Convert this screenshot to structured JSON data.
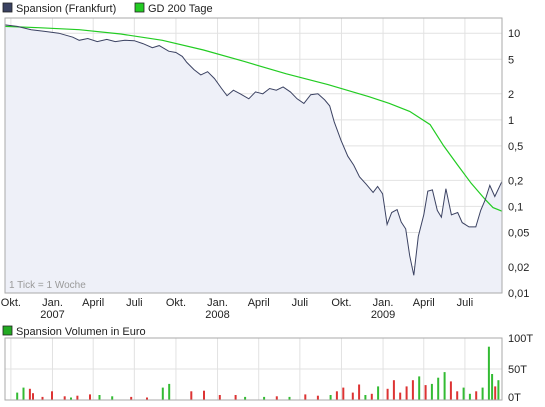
{
  "chart_data": [
    {
      "type": "line",
      "y_scale": "log",
      "ylim": [
        0.01,
        15
      ],
      "y_ticks": [
        {
          "value": 10,
          "label": "10"
        },
        {
          "value": 5,
          "label": "5"
        },
        {
          "value": 2,
          "label": "2"
        },
        {
          "value": 1,
          "label": "1"
        },
        {
          "value": 0.5,
          "label": "0,5"
        },
        {
          "value": 0.2,
          "label": "0,2"
        },
        {
          "value": 0.1,
          "label": "0,1"
        },
        {
          "value": 0.05,
          "label": "0,05"
        },
        {
          "value": 0.02,
          "label": "0,02"
        },
        {
          "value": 0.01,
          "label": "0,01"
        }
      ],
      "x_range": [
        "2006-09-18",
        "2009-09-21"
      ],
      "x_ticks": [
        {
          "date": "2006-10-01",
          "label": "Okt.",
          "year": ""
        },
        {
          "date": "2007-01-01",
          "label": "Jan.",
          "year": "2007"
        },
        {
          "date": "2007-04-01",
          "label": "April",
          "year": ""
        },
        {
          "date": "2007-07-01",
          "label": "Juli",
          "year": ""
        },
        {
          "date": "2007-10-01",
          "label": "Okt.",
          "year": ""
        },
        {
          "date": "2008-01-01",
          "label": "Jan.",
          "year": "2008"
        },
        {
          "date": "2008-04-01",
          "label": "April",
          "year": ""
        },
        {
          "date": "2008-07-01",
          "label": "Juli",
          "year": ""
        },
        {
          "date": "2008-10-01",
          "label": "Okt.",
          "year": ""
        },
        {
          "date": "2009-01-01",
          "label": "Jan.",
          "year": "2009"
        },
        {
          "date": "2009-04-01",
          "label": "April",
          "year": ""
        },
        {
          "date": "2009-07-01",
          "label": "Juli",
          "year": ""
        }
      ],
      "grid": true,
      "annotation": "1 Tick = 1 Woche",
      "legend_position": "top-left",
      "series": [
        {
          "name": "Spansion (Frankfurt)",
          "color": "#3b4262",
          "fill": "#eef0f8",
          "points": [
            [
              "2006-09-18",
              12.5
            ],
            [
              "2006-10-15",
              12.0
            ],
            [
              "2006-11-15",
              11.0
            ],
            [
              "2006-12-15",
              10.5
            ],
            [
              "2007-01-15",
              10.0
            ],
            [
              "2007-02-15",
              9.0
            ],
            [
              "2007-03-01",
              8.3
            ],
            [
              "2007-03-20",
              8.7
            ],
            [
              "2007-04-10",
              8.0
            ],
            [
              "2007-05-01",
              8.5
            ],
            [
              "2007-05-20",
              8.0
            ],
            [
              "2007-06-10",
              8.3
            ],
            [
              "2007-07-01",
              8.2
            ],
            [
              "2007-07-20",
              7.6
            ],
            [
              "2007-08-10",
              6.8
            ],
            [
              "2007-08-25",
              7.2
            ],
            [
              "2007-09-15",
              6.2
            ],
            [
              "2007-10-01",
              6.0
            ],
            [
              "2007-10-15",
              5.4
            ],
            [
              "2007-10-25",
              4.6
            ],
            [
              "2007-11-10",
              3.8
            ],
            [
              "2007-11-25",
              3.3
            ],
            [
              "2007-12-10",
              3.6
            ],
            [
              "2007-12-25",
              3.0
            ],
            [
              "2008-01-10",
              2.3
            ],
            [
              "2008-01-22",
              1.9
            ],
            [
              "2008-02-05",
              2.2
            ],
            [
              "2008-02-20",
              2.0
            ],
            [
              "2008-03-10",
              1.75
            ],
            [
              "2008-03-25",
              2.1
            ],
            [
              "2008-04-10",
              2.0
            ],
            [
              "2008-04-25",
              2.3
            ],
            [
              "2008-05-10",
              2.2
            ],
            [
              "2008-05-25",
              2.4
            ],
            [
              "2008-06-10",
              2.1
            ],
            [
              "2008-06-25",
              1.75
            ],
            [
              "2008-07-10",
              1.55
            ],
            [
              "2008-07-25",
              1.95
            ],
            [
              "2008-08-10",
              2.0
            ],
            [
              "2008-08-25",
              1.7
            ],
            [
              "2008-09-05",
              1.45
            ],
            [
              "2008-09-15",
              0.95
            ],
            [
              "2008-09-30",
              0.58
            ],
            [
              "2008-10-15",
              0.38
            ],
            [
              "2008-10-28",
              0.3
            ],
            [
              "2008-11-10",
              0.22
            ],
            [
              "2008-11-25",
              0.18
            ],
            [
              "2008-12-10",
              0.145
            ],
            [
              "2008-12-20",
              0.17
            ],
            [
              "2008-12-31",
              0.14
            ],
            [
              "2009-01-10",
              0.062
            ],
            [
              "2009-01-20",
              0.085
            ],
            [
              "2009-02-01",
              0.092
            ],
            [
              "2009-02-10",
              0.066
            ],
            [
              "2009-02-20",
              0.055
            ],
            [
              "2009-03-01",
              0.027
            ],
            [
              "2009-03-10",
              0.016
            ],
            [
              "2009-03-20",
              0.045
            ],
            [
              "2009-04-01",
              0.08
            ],
            [
              "2009-04-10",
              0.15
            ],
            [
              "2009-04-20",
              0.155
            ],
            [
              "2009-05-01",
              0.09
            ],
            [
              "2009-05-10",
              0.075
            ],
            [
              "2009-05-20",
              0.16
            ],
            [
              "2009-06-01",
              0.08
            ],
            [
              "2009-06-15",
              0.085
            ],
            [
              "2009-06-25",
              0.065
            ],
            [
              "2009-07-10",
              0.058
            ],
            [
              "2009-07-25",
              0.058
            ],
            [
              "2009-08-05",
              0.09
            ],
            [
              "2009-08-15",
              0.12
            ],
            [
              "2009-08-25",
              0.175
            ],
            [
              "2009-09-05",
              0.13
            ],
            [
              "2009-09-21",
              0.195
            ]
          ]
        },
        {
          "name": "GD 200 Tage",
          "color": "#22cc22",
          "points": [
            [
              "2006-09-18",
              12.0
            ],
            [
              "2006-12-01",
              11.6
            ],
            [
              "2007-03-01",
              11.0
            ],
            [
              "2007-06-01",
              9.8
            ],
            [
              "2007-09-01",
              8.3
            ],
            [
              "2007-12-01",
              6.4
            ],
            [
              "2008-03-01",
              4.7
            ],
            [
              "2008-06-01",
              3.4
            ],
            [
              "2008-09-01",
              2.55
            ],
            [
              "2008-12-01",
              1.85
            ],
            [
              "2009-01-15",
              1.55
            ],
            [
              "2009-03-01",
              1.25
            ],
            [
              "2009-04-15",
              0.88
            ],
            [
              "2009-05-15",
              0.5
            ],
            [
              "2009-06-15",
              0.3
            ],
            [
              "2009-07-15",
              0.185
            ],
            [
              "2009-08-15",
              0.12
            ],
            [
              "2009-09-01",
              0.097
            ],
            [
              "2009-09-21",
              0.088
            ]
          ]
        }
      ]
    },
    {
      "type": "bar",
      "title": "Spansion Volumen in Euro",
      "ylim": [
        0,
        100
      ],
      "y_ticks": [
        {
          "value": 100,
          "label": "100T"
        },
        {
          "value": 50,
          "label": "50T"
        },
        {
          "value": 0,
          "label": "0T"
        }
      ],
      "legend_color": "#22aa22",
      "up_color": "#33bb33",
      "down_color": "#dd3333",
      "bars": [
        [
          "2006-10-15",
          12,
          "up"
        ],
        [
          "2006-10-29",
          20,
          "up"
        ],
        [
          "2006-11-12",
          18,
          "down"
        ],
        [
          "2006-11-19",
          11,
          "down"
        ],
        [
          "2006-12-10",
          5,
          "down"
        ],
        [
          "2006-12-31",
          14,
          "down"
        ],
        [
          "2007-01-28",
          6,
          "down"
        ],
        [
          "2007-02-11",
          4,
          "up"
        ],
        [
          "2007-02-25",
          7,
          "down"
        ],
        [
          "2007-03-25",
          9,
          "down"
        ],
        [
          "2007-04-15",
          8,
          "up"
        ],
        [
          "2007-05-13",
          6,
          "up"
        ],
        [
          "2007-06-24",
          5,
          "down"
        ],
        [
          "2007-07-29",
          4,
          "down"
        ],
        [
          "2007-09-02",
          20,
          "up"
        ],
        [
          "2007-09-16",
          26,
          "up"
        ],
        [
          "2007-11-04",
          14,
          "down"
        ],
        [
          "2007-12-02",
          15,
          "down"
        ],
        [
          "2008-01-06",
          8,
          "down"
        ],
        [
          "2008-02-10",
          8,
          "down"
        ],
        [
          "2008-03-02",
          5,
          "up"
        ],
        [
          "2008-04-13",
          5,
          "up"
        ],
        [
          "2008-05-11",
          6,
          "down"
        ],
        [
          "2008-06-08",
          5,
          "up"
        ],
        [
          "2008-07-13",
          9,
          "down"
        ],
        [
          "2008-08-10",
          7,
          "down"
        ],
        [
          "2008-09-07",
          8,
          "up"
        ],
        [
          "2008-09-21",
          14,
          "down"
        ],
        [
          "2008-10-05",
          20,
          "down"
        ],
        [
          "2008-10-26",
          12,
          "down"
        ],
        [
          "2008-11-09",
          25,
          "down"
        ],
        [
          "2008-11-23",
          8,
          "up"
        ],
        [
          "2008-12-07",
          10,
          "down"
        ],
        [
          "2008-12-21",
          22,
          "up"
        ],
        [
          "2009-01-11",
          18,
          "down"
        ],
        [
          "2009-01-25",
          32,
          "down"
        ],
        [
          "2009-02-08",
          12,
          "down"
        ],
        [
          "2009-02-22",
          22,
          "down"
        ],
        [
          "2009-03-08",
          32,
          "down"
        ],
        [
          "2009-03-22",
          38,
          "up"
        ],
        [
          "2009-04-05",
          24,
          "down"
        ],
        [
          "2009-04-19",
          26,
          "up"
        ],
        [
          "2009-05-03",
          36,
          "up"
        ],
        [
          "2009-05-17",
          45,
          "up"
        ],
        [
          "2009-05-31",
          30,
          "down"
        ],
        [
          "2009-06-14",
          14,
          "down"
        ],
        [
          "2009-06-28",
          20,
          "up"
        ],
        [
          "2009-07-12",
          10,
          "up"
        ],
        [
          "2009-07-26",
          14,
          "down"
        ],
        [
          "2009-08-09",
          20,
          "up"
        ],
        [
          "2009-08-23",
          86,
          "up"
        ],
        [
          "2009-08-30",
          42,
          "up"
        ],
        [
          "2009-09-06",
          22,
          "down"
        ],
        [
          "2009-09-13",
          32,
          "up"
        ]
      ]
    }
  ]
}
